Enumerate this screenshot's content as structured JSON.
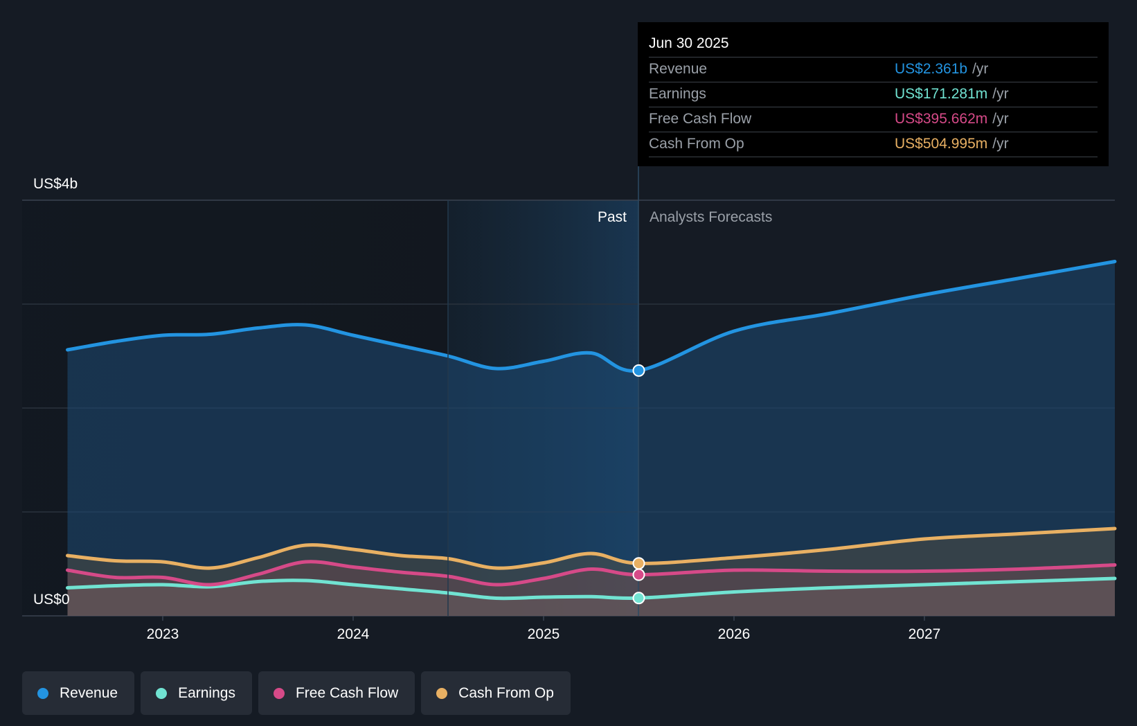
{
  "chart_data": {
    "type": "area",
    "ylim": [
      0,
      4.0
    ],
    "y_top_label": "US$4b",
    "y_bottom_label": "US$0",
    "x_ticks": [
      2023,
      2024,
      2025,
      2026,
      2027
    ],
    "x_range": [
      2022.5,
      2028.0
    ],
    "past_label": "Past",
    "forecast_label": "Analysts Forecasts",
    "divider_x": 2025.5,
    "highlight_start_x": 2024.5,
    "series": [
      {
        "name": "Revenue",
        "color": "#2394e1",
        "points": [
          [
            2022.5,
            2.56
          ],
          [
            2022.75,
            2.64
          ],
          [
            2023.0,
            2.7
          ],
          [
            2023.25,
            2.71
          ],
          [
            2023.5,
            2.77
          ],
          [
            2023.75,
            2.8
          ],
          [
            2024.0,
            2.7
          ],
          [
            2024.25,
            2.6
          ],
          [
            2024.5,
            2.5
          ],
          [
            2024.75,
            2.38
          ],
          [
            2025.0,
            2.45
          ],
          [
            2025.25,
            2.53
          ],
          [
            2025.5,
            2.361
          ],
          [
            2026.0,
            2.74
          ],
          [
            2026.5,
            2.91
          ],
          [
            2027.0,
            3.09
          ],
          [
            2027.5,
            3.25
          ],
          [
            2028.0,
            3.41
          ]
        ],
        "tooltip_value": "US$2.361b"
      },
      {
        "name": "Earnings",
        "color": "#71e3d2",
        "points": [
          [
            2022.5,
            0.27
          ],
          [
            2022.75,
            0.29
          ],
          [
            2023.0,
            0.3
          ],
          [
            2023.25,
            0.28
          ],
          [
            2023.5,
            0.33
          ],
          [
            2023.75,
            0.34
          ],
          [
            2024.0,
            0.3
          ],
          [
            2024.25,
            0.26
          ],
          [
            2024.5,
            0.22
          ],
          [
            2024.75,
            0.17
          ],
          [
            2025.0,
            0.18
          ],
          [
            2025.25,
            0.185
          ],
          [
            2025.5,
            0.171281
          ],
          [
            2026.0,
            0.23
          ],
          [
            2026.5,
            0.27
          ],
          [
            2027.0,
            0.3
          ],
          [
            2027.5,
            0.33
          ],
          [
            2028.0,
            0.36
          ]
        ],
        "tooltip_value": "US$171.281m"
      },
      {
        "name": "Free Cash Flow",
        "color": "#d64a88",
        "points": [
          [
            2022.5,
            0.44
          ],
          [
            2022.75,
            0.37
          ],
          [
            2023.0,
            0.37
          ],
          [
            2023.25,
            0.3
          ],
          [
            2023.5,
            0.4
          ],
          [
            2023.75,
            0.52
          ],
          [
            2024.0,
            0.47
          ],
          [
            2024.25,
            0.42
          ],
          [
            2024.5,
            0.38
          ],
          [
            2024.75,
            0.3
          ],
          [
            2025.0,
            0.36
          ],
          [
            2025.25,
            0.45
          ],
          [
            2025.5,
            0.395662
          ],
          [
            2026.0,
            0.44
          ],
          [
            2026.5,
            0.43
          ],
          [
            2027.0,
            0.43
          ],
          [
            2027.5,
            0.45
          ],
          [
            2028.0,
            0.49
          ]
        ],
        "tooltip_value": "US$395.662m"
      },
      {
        "name": "Cash From Op",
        "color": "#e8b063",
        "points": [
          [
            2022.5,
            0.58
          ],
          [
            2022.75,
            0.53
          ],
          [
            2023.0,
            0.52
          ],
          [
            2023.25,
            0.46
          ],
          [
            2023.5,
            0.56
          ],
          [
            2023.75,
            0.68
          ],
          [
            2024.0,
            0.64
          ],
          [
            2024.25,
            0.58
          ],
          [
            2024.5,
            0.55
          ],
          [
            2024.75,
            0.46
          ],
          [
            2025.0,
            0.51
          ],
          [
            2025.25,
            0.6
          ],
          [
            2025.5,
            0.504995
          ],
          [
            2026.0,
            0.56
          ],
          [
            2026.5,
            0.64
          ],
          [
            2027.0,
            0.74
          ],
          [
            2027.5,
            0.79
          ],
          [
            2028.0,
            0.84
          ]
        ],
        "tooltip_value": "US$504.995m"
      }
    ]
  },
  "tooltip": {
    "date": "Jun 30 2025",
    "unit": "/yr",
    "rows": [
      {
        "label": "Revenue",
        "value": "US$2.361b",
        "color": "#2394e1"
      },
      {
        "label": "Earnings",
        "value": "US$171.281m",
        "color": "#71e3d2"
      },
      {
        "label": "Free Cash Flow",
        "value": "US$395.662m",
        "color": "#d64a88"
      },
      {
        "label": "Cash From Op",
        "value": "US$504.995m",
        "color": "#e8b063"
      }
    ]
  },
  "legend": {
    "items": [
      {
        "label": "Revenue",
        "color": "#2394e1"
      },
      {
        "label": "Earnings",
        "color": "#71e3d2"
      },
      {
        "label": "Free Cash Flow",
        "color": "#d64a88"
      },
      {
        "label": "Cash From Op",
        "color": "#e8b063"
      }
    ]
  }
}
